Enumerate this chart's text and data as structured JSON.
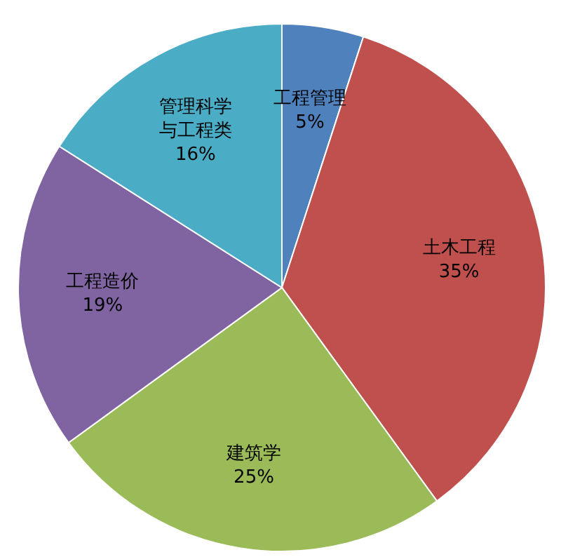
{
  "chart_data": {
    "type": "pie",
    "categories": [
      "工程管理",
      "土木工程",
      "建筑学",
      "工程造价",
      "管理科学与工程类"
    ],
    "values": [
      5,
      35,
      25,
      19,
      16
    ],
    "value_labels": [
      "5%",
      "35%",
      "25%",
      "19%",
      "16%"
    ],
    "colors": [
      "#4f81bd",
      "#c0504d",
      "#9bbb59",
      "#8064a2",
      "#4bacc6"
    ],
    "legend": false
  }
}
